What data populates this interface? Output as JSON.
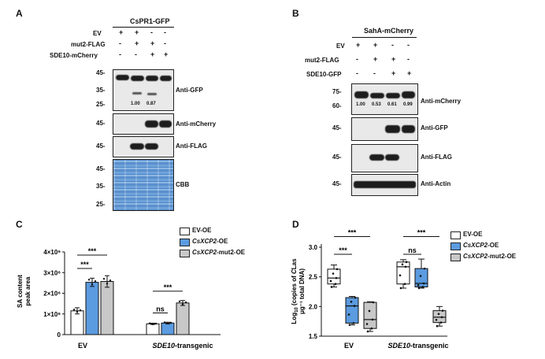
{
  "panelA": {
    "letter": "A",
    "title": "CsPR1-GFP",
    "rows": [
      {
        "label": "EV",
        "signs": [
          "+",
          "+",
          "-",
          "-"
        ]
      },
      {
        "label": "mut2-FLAG",
        "signs": [
          "-",
          "+",
          "+",
          "-"
        ]
      },
      {
        "label": "SDE10-mCherry",
        "signs": [
          "-",
          "-",
          "+",
          "+"
        ]
      }
    ],
    "blots": [
      "Anti-GFP",
      "Anti-mCherry",
      "Anti-FLAG",
      "CBB"
    ],
    "markers": [
      "45-",
      "35-",
      "25-",
      "45-",
      "45-",
      "45-",
      "35-",
      "25-"
    ],
    "quant": [
      "1.00",
      "0.87"
    ]
  },
  "panelB": {
    "letter": "B",
    "title": "SahA-mCherry",
    "rows": [
      {
        "label": "EV",
        "signs": [
          "+",
          "+",
          "-",
          "-"
        ]
      },
      {
        "label": "mut2-FLAG",
        "signs": [
          "-",
          "+",
          "+",
          "-"
        ]
      },
      {
        "label": "SDE10-GFP",
        "signs": [
          "-",
          "-",
          "+",
          "+"
        ]
      }
    ],
    "blots": [
      "Anti-mCherry",
      "Anti-GFP",
      "Anti-FLAG",
      "Anti-Actin"
    ],
    "markers": [
      "75-",
      "60-",
      "45-",
      "45-",
      "45-"
    ],
    "quant": [
      "1.00",
      "0.53",
      "0.61",
      "0.99"
    ]
  },
  "panelC": {
    "letter": "C",
    "chart_data": {
      "type": "bar",
      "ylabel_line1": "SA content",
      "ylabel_line2": "peak area",
      "yticks": [
        "0",
        "1×10⁶",
        "2×10⁶",
        "3×10⁶",
        "4×10⁶"
      ],
      "ylim": [
        0,
        4000000
      ],
      "categories": [
        "EV",
        "SDE10-transgenic"
      ],
      "series": [
        {
          "name": "EV-OE",
          "color": "#ffffff",
          "values": [
            1150000,
            520000
          ],
          "errors": [
            150000,
            30000
          ]
        },
        {
          "name": "CsXCP2-OE",
          "color": "#5b9be0",
          "values": [
            2530000,
            560000
          ],
          "errors": [
            200000,
            40000
          ]
        },
        {
          "name": "CsXCP2-mut2-OE",
          "color": "#c8c8c8",
          "values": [
            2570000,
            1530000
          ],
          "errors": [
            280000,
            120000
          ]
        }
      ],
      "significance": [
        "***",
        "***",
        "***",
        "ns"
      ]
    },
    "legend": [
      {
        "pre": "",
        "ital": "",
        "post": "EV-OE",
        "color": "#ffffff"
      },
      {
        "pre": "",
        "ital": "CsXCP2",
        "post": "-OE",
        "color": "#5b9be0"
      },
      {
        "pre": "",
        "ital": "CsXCP2",
        "post": "-mut2-OE",
        "color": "#c8c8c8"
      }
    ],
    "xcat_ev": "EV",
    "xcat_sde_ital": "SDE10",
    "xcat_sde_post": "-transgenic"
  },
  "panelD": {
    "letter": "D",
    "chart_data": {
      "type": "box",
      "ylabel_pre": "Log",
      "ylabel_sub": "10",
      "ylabel_mid": " (copies of ",
      "ylabel_ital": "C",
      "ylabel_post": "Las",
      "ylabel_line2": "μg⁻¹ total DNA)",
      "yticks": [
        "1.5",
        "2.0",
        "2.5",
        "3.0"
      ],
      "ylim": [
        1.5,
        3.0
      ],
      "categories": [
        "EV",
        "SDE10-transgenic"
      ],
      "series": [
        {
          "name": "EV-OE",
          "color": "#ffffff",
          "boxes": [
            {
              "min": 2.33,
              "q1": 2.38,
              "median": 2.48,
              "q3": 2.63,
              "max": 2.7
            },
            {
              "min": 2.31,
              "q1": 2.38,
              "median": 2.67,
              "q3": 2.75,
              "max": 2.79
            }
          ]
        },
        {
          "name": "CsXCP2-OE",
          "color": "#5b9be0",
          "boxes": [
            {
              "min": 1.69,
              "q1": 1.72,
              "median": 2.01,
              "q3": 2.15,
              "max": 2.17
            },
            {
              "min": 2.31,
              "q1": 2.33,
              "median": 2.39,
              "q3": 2.64,
              "max": 2.8
            }
          ]
        },
        {
          "name": "CsXCP2-mut2-OE",
          "color": "#c8c8c8",
          "boxes": [
            {
              "min": 1.58,
              "q1": 1.63,
              "median": 1.78,
              "q3": 2.07,
              "max": 2.08
            },
            {
              "min": 1.67,
              "q1": 1.73,
              "median": 1.82,
              "q3": 1.93,
              "max": 2.0
            }
          ]
        }
      ],
      "significance": [
        "***",
        "***",
        "***",
        "ns"
      ]
    },
    "legend": [
      {
        "pre": "",
        "ital": "",
        "post": "EV-OE",
        "color": "#ffffff"
      },
      {
        "pre": "",
        "ital": "CsXCP2",
        "post": "-OE",
        "color": "#5b9be0"
      },
      {
        "pre": "",
        "ital": "CsXCP2",
        "post": "-mut2-OE",
        "color": "#c8c8c8"
      }
    ],
    "xcat_ev": "EV",
    "xcat_sde_ital": "SDE10",
    "xcat_sde_post": "-transgenic"
  }
}
